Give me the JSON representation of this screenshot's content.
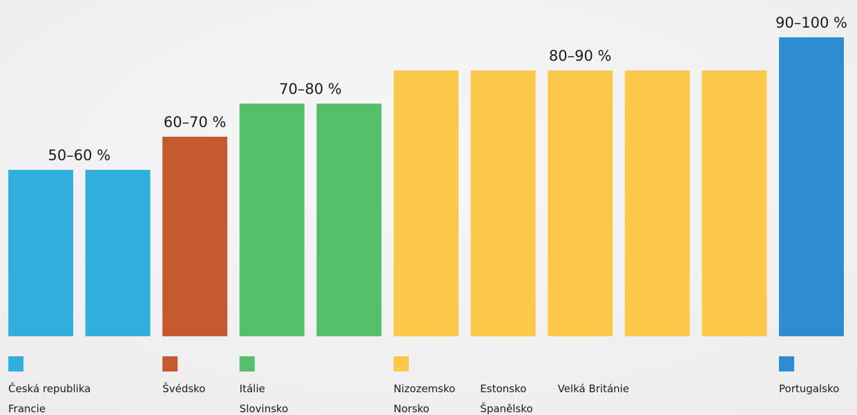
{
  "groups": [
    {
      "label": "50–60 %",
      "color": "#31aedc",
      "countries": [
        "Česká republika",
        "Francie"
      ]
    },
    {
      "label": "60–70 %",
      "color": "#c55a2f",
      "countries": [
        "Švédsko"
      ]
    },
    {
      "label": "70–80 %",
      "color": "#55c06c",
      "countries": [
        "Itálie",
        "Slovinsko"
      ]
    },
    {
      "label": "80–90 %",
      "color": "#fcc84a",
      "countries": [
        "Nizozemsko",
        "Norsko",
        "Estonsko",
        "Španělsko",
        "Velká Británie"
      ]
    },
    {
      "label": "90–100 %",
      "color": "#2e8dd0",
      "countries": [
        "Portugalsko"
      ]
    }
  ]
}
